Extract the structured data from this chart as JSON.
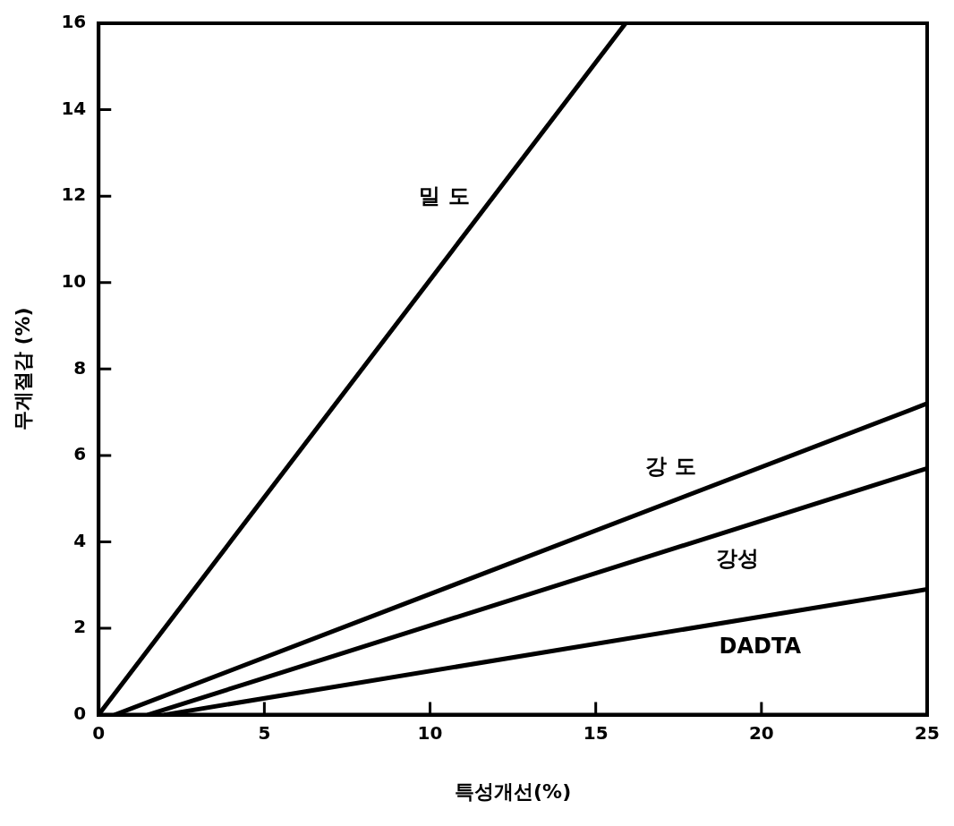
{
  "chart_data": {
    "type": "line",
    "xlabel": "특성개선(%)",
    "ylabel": "무게절감 (%)",
    "xlim": [
      0,
      25
    ],
    "xticks": [
      0,
      5,
      10,
      15,
      20,
      25
    ],
    "ylim": [
      0,
      16
    ],
    "yticks": [
      0,
      2,
      4,
      6,
      8,
      10,
      12,
      14,
      16
    ],
    "grid": false,
    "legend": false,
    "marker": "none",
    "line_style": "solid",
    "series": [
      {
        "name": "밀 도",
        "color": "#000000",
        "x": [
          0,
          15.9
        ],
        "values": [
          0,
          16
        ]
      },
      {
        "name": "강 도",
        "color": "#000000",
        "x": [
          0.5,
          25
        ],
        "values": [
          0,
          7.2
        ]
      },
      {
        "name": "강성",
        "color": "#000000",
        "x": [
          1.5,
          25
        ],
        "values": [
          0,
          5.7
        ]
      },
      {
        "name": "DADTA",
        "color": "#000000",
        "x": [
          2,
          25
        ],
        "values": [
          0,
          2.9
        ]
      }
    ]
  }
}
